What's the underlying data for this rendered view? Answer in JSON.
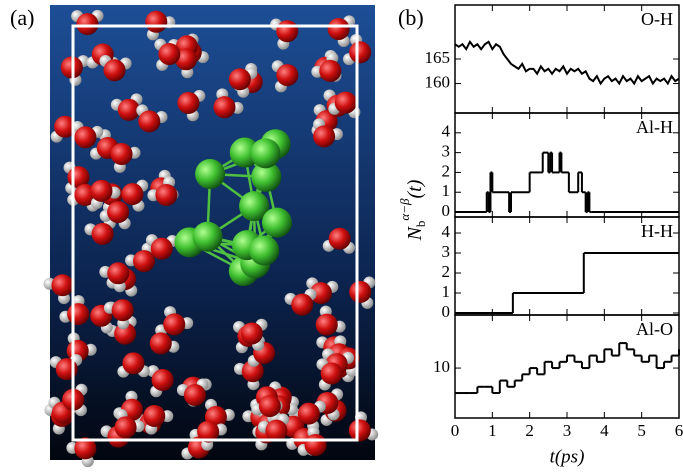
{
  "panel_labels": [
    "(a)",
    "(b)"
  ],
  "ylabel": {
    "symbol": "N",
    "subscript": "b",
    "superscript": "α−β",
    "argument": "(t)"
  },
  "chart_data": [
    {
      "type": "line",
      "step": false,
      "xlim": [
        0,
        6
      ],
      "xticks": [
        0,
        1,
        2,
        3,
        4,
        5,
        6
      ],
      "xticklabels": false,
      "ylim": [
        154,
        176
      ],
      "yticks": [
        160,
        165
      ],
      "legend": "upper right",
      "series": [
        {
          "name": "O-H",
          "color": "#000000",
          "x": [
            0,
            0.1,
            0.2,
            0.3,
            0.4,
            0.5,
            0.6,
            0.7,
            0.8,
            0.9,
            1,
            1.1,
            1.2,
            1.3,
            1.4,
            1.5,
            1.6,
            1.7,
            1.8,
            1.9,
            2,
            2.1,
            2.2,
            2.3,
            2.4,
            2.5,
            2.6,
            2.7,
            2.8,
            2.9,
            3,
            3.1,
            3.2,
            3.3,
            3.4,
            3.5,
            3.6,
            3.7,
            3.8,
            3.9,
            4,
            4.1,
            4.2,
            4.3,
            4.4,
            4.5,
            4.6,
            4.7,
            4.8,
            4.9,
            5,
            5.1,
            5.2,
            5.3,
            5.4,
            5.5,
            5.6,
            5.7,
            5.8,
            5.9,
            6
          ],
          "values": [
            168,
            167.5,
            168,
            167,
            168.5,
            167.5,
            168,
            167,
            168,
            168.5,
            167,
            168,
            167.5,
            166,
            165,
            164,
            163.5,
            163,
            164,
            162.5,
            163,
            163,
            162,
            163.5,
            162.5,
            163,
            162,
            163,
            162.5,
            163.5,
            162,
            163,
            162.5,
            163,
            162,
            162.5,
            161,
            160.5,
            161.5,
            160,
            161,
            161.5,
            160.5,
            161,
            160,
            161.5,
            160.5,
            161,
            160,
            161.5,
            160.5,
            161,
            161.5,
            160,
            161,
            160.5,
            161,
            160,
            161.5,
            160.5,
            161
          ]
        }
      ]
    },
    {
      "type": "line",
      "step": true,
      "xlim": [
        0,
        6
      ],
      "xticks": [
        0,
        1,
        2,
        3,
        4,
        5,
        6
      ],
      "xticklabels": false,
      "ylim": [
        -0.25,
        5
      ],
      "yticks": [
        0,
        1,
        2,
        3,
        4
      ],
      "legend": "upper right",
      "series": [
        {
          "name": "Al-H",
          "color": "#000000",
          "x": [
            0,
            0.85,
            0.9,
            0.95,
            1.0,
            1.3,
            1.45,
            1.5,
            2.0,
            2.3,
            2.35,
            2.5,
            2.55,
            2.6,
            2.8,
            2.85,
            3.0,
            3.05,
            3.3,
            3.4,
            3.5,
            3.55,
            3.6,
            3.65,
            6
          ],
          "values": [
            0,
            1,
            0,
            2,
            1,
            1,
            0,
            1,
            2,
            2,
            3,
            2,
            3,
            2,
            3,
            2,
            2,
            1,
            2,
            1,
            0,
            1,
            0,
            0,
            0
          ]
        }
      ]
    },
    {
      "type": "line",
      "step": true,
      "xlim": [
        0,
        6
      ],
      "xticks": [
        0,
        1,
        2,
        3,
        4,
        5,
        6
      ],
      "xticklabels": false,
      "ylim": [
        -0.1,
        4.8
      ],
      "yticks": [
        0,
        1,
        2,
        3,
        4
      ],
      "legend": "upper right",
      "series": [
        {
          "name": "H-H",
          "color": "#000000",
          "x": [
            0,
            1.55,
            3.45,
            6
          ],
          "values": [
            0,
            1,
            3,
            3
          ]
        }
      ]
    },
    {
      "type": "line",
      "step": true,
      "xlim": [
        0,
        6
      ],
      "xticks": [
        0,
        1,
        2,
        3,
        4,
        5,
        6
      ],
      "xticklabels": true,
      "xlabel": "t(ps)",
      "ylim": [
        2,
        18.5
      ],
      "yticks": [
        10
      ],
      "legend": "upper right",
      "series": [
        {
          "name": "Al-O",
          "color": "#000000",
          "x": [
            0,
            0.2,
            0.4,
            0.6,
            0.8,
            1,
            1.2,
            1.4,
            1.6,
            1.8,
            2,
            2.2,
            2.4,
            2.6,
            2.8,
            3,
            3.2,
            3.4,
            3.6,
            3.8,
            4,
            4.2,
            4.4,
            4.6,
            4.8,
            5,
            5.2,
            5.4,
            5.6,
            5.8,
            6
          ],
          "values": [
            6,
            6,
            6,
            7,
            7,
            6,
            8,
            7,
            8,
            9,
            10,
            9,
            11,
            10,
            11,
            12,
            11,
            10,
            12,
            11,
            13,
            12,
            14,
            13,
            12,
            11,
            12,
            10,
            11,
            12,
            13
          ]
        }
      ]
    }
  ]
}
